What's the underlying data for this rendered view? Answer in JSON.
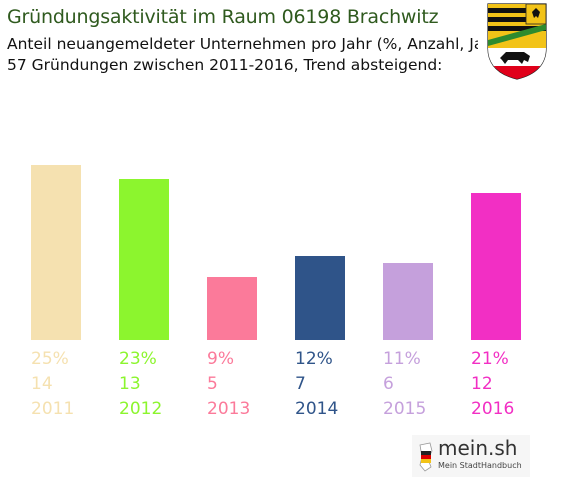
{
  "header": {
    "title": "Gründungsaktivität im Raum 06198 Brachwitz",
    "subtitle_line1": "Anteil neuangemeldeter Unternehmen pro Jahr (%, Anzahl, Jahr)",
    "subtitle_line2": "57 Gründungen zwischen 2011-2016, Trend absteigend:"
  },
  "chart_data": {
    "type": "bar",
    "categories": [
      "2011",
      "2012",
      "2013",
      "2014",
      "2015",
      "2016"
    ],
    "values": [
      25,
      23,
      9,
      12,
      11,
      21
    ],
    "percent_labels": [
      "25%",
      "23%",
      "9%",
      "12%",
      "11%",
      "21%"
    ],
    "counts": [
      "14",
      "13",
      "5",
      "7",
      "6",
      "12"
    ],
    "colors": [
      "#f5e1b0",
      "#8cf52e",
      "#fb7a9a",
      "#2f5489",
      "#c5a0dc",
      "#f22fc4"
    ],
    "ylim": [
      0,
      25
    ]
  },
  "logo": {
    "text": "mein.sh",
    "subtext": "Mein StadtHandbuch"
  }
}
